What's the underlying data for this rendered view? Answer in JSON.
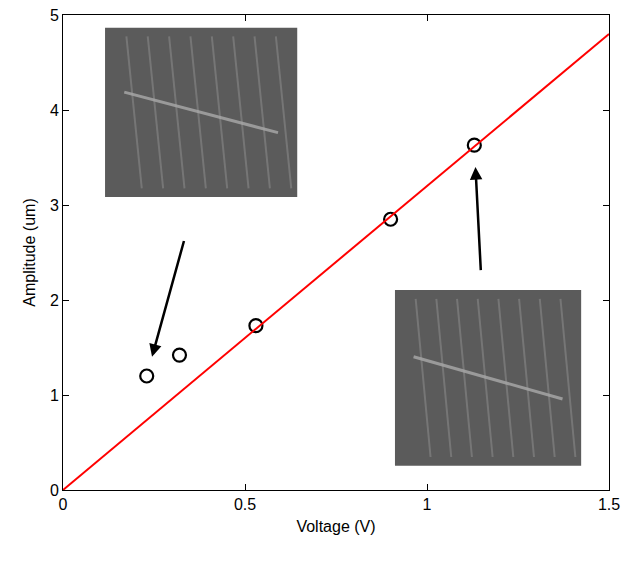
{
  "chart_data": {
    "type": "scatter",
    "x_label": "Voltage (V)",
    "y_label": "Amplitude (um)",
    "xlim": [
      0,
      1.5
    ],
    "xticks": [
      0,
      0.5,
      1,
      1.5
    ],
    "ylim": [
      0,
      5
    ],
    "yticks": [
      0,
      1,
      2,
      3,
      4,
      5
    ],
    "grid": false,
    "series": [
      {
        "type": "scatter",
        "marker": "open circle",
        "color": "#000000",
        "x": [
          0.23,
          0.32,
          0.53,
          0.9,
          1.13
        ],
        "values": [
          1.2,
          1.42,
          1.73,
          2.85,
          3.63
        ]
      },
      {
        "type": "line",
        "line_style": "solid",
        "color": "#ff0000",
        "x": [
          0,
          1.5
        ],
        "values": [
          0,
          4.8
        ]
      }
    ]
  }
}
